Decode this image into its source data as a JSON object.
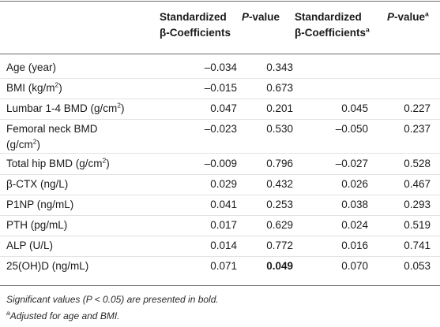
{
  "header": {
    "col1_line1": "Standardized",
    "col1_line2": "β-Coefficients",
    "col2_italic": "P",
    "col2_rest": "-value",
    "col3_line1": "Standardized",
    "col3_line2": "β-Coefficients",
    "col3_sup": "a",
    "col4_italic": "P",
    "col4_rest": "-value",
    "col4_sup": "a"
  },
  "rows": [
    {
      "label": "Age (year)",
      "sup": "",
      "c1": "–0.034",
      "c2": "0.343",
      "c3": "",
      "c4": ""
    },
    {
      "label": "BMI (kg/m",
      "sup": "2",
      "tail": ")",
      "c1": "–0.015",
      "c2": "0.673",
      "c3": "",
      "c4": ""
    },
    {
      "label": "Lumbar 1-4 BMD (g/cm",
      "sup": "2",
      "tail": ")",
      "c1": "0.047",
      "c2": "0.201",
      "c3": "0.045",
      "c4": "0.227"
    },
    {
      "label": "Femoral neck BMD",
      "label2": "(g/cm",
      "sup": "2",
      "tail": ")",
      "c1": "–0.023",
      "c2": "0.530",
      "c3": "–0.050",
      "c4": "0.237"
    },
    {
      "label": "Total hip BMD (g/cm",
      "sup": "2",
      "tail": ")",
      "c1": "–0.009",
      "c2": "0.796",
      "c3": "–0.027",
      "c4": "0.528"
    },
    {
      "label": "β-CTX (ng/L)",
      "sup": "",
      "c1": "0.029",
      "c2": "0.432",
      "c3": "0.026",
      "c4": "0.467"
    },
    {
      "label": "P1NP (ng/mL)",
      "sup": "",
      "c1": "0.041",
      "c2": "0.253",
      "c3": "0.038",
      "c4": "0.293"
    },
    {
      "label": "PTH (pg/mL)",
      "sup": "",
      "c1": "0.017",
      "c2": "0.629",
      "c3": "0.024",
      "c4": "0.519"
    },
    {
      "label": "ALP (U/L)",
      "sup": "",
      "c1": "0.014",
      "c2": "0.772",
      "c3": "0.016",
      "c4": "0.741"
    },
    {
      "label": "25(OH)D (ng/mL)",
      "sup": "",
      "c1": "0.071",
      "c2": "0.049",
      "c2_bold": true,
      "c3": "0.070",
      "c4": "0.053"
    }
  ],
  "footnotes": {
    "note1": "Significant values (P < 0.05) are presented in bold.",
    "note2_sup": "a",
    "note2": "Adjusted for age and BMI."
  }
}
